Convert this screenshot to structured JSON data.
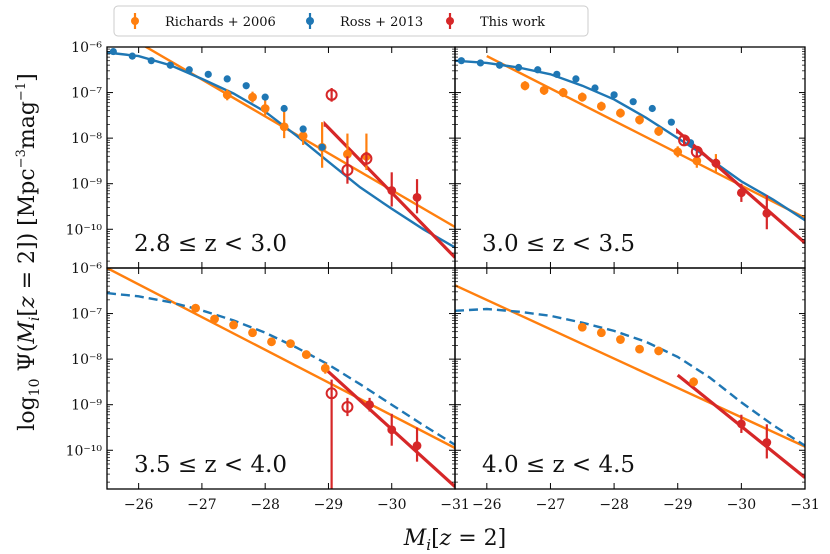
{
  "colors": {
    "orange": "#ff7f0e",
    "blue": "#1f77b4",
    "red": "#d62728"
  },
  "chart_data": {
    "type": "scatter",
    "xlabel": "M_i[z = 2]",
    "ylabel": "log10 Ψ(M_i[z = 2]) [Mpc^-3 mag^-1]",
    "xlim": [
      -25.5,
      -31.0
    ],
    "ylim_log10": [
      -10.85,
      -6.0
    ],
    "y_scale": "log",
    "x_ticks": [
      -26,
      -27,
      -28,
      -29,
      -30,
      -31
    ],
    "x_tick_labels": [
      "−26",
      "−27",
      "−28",
      "−29",
      "−30",
      "−31"
    ],
    "y_ticks": [
      -10,
      -9,
      -8,
      -7,
      -6
    ],
    "y_tick_labels": [
      "10⁻¹⁰",
      "10⁻⁹",
      "10⁻⁸",
      "10⁻⁷",
      "10⁻⁶"
    ],
    "legend": {
      "placement": "top",
      "entries": [
        {
          "label": "Richards + 2006",
          "color": "orange"
        },
        {
          "label": "Ross + 2013",
          "color": "blue"
        },
        {
          "label": "This work",
          "color": "red"
        }
      ]
    },
    "panels": [
      {
        "label": "2.8 ≤ z < 3.0",
        "series": [
          {
            "name": "Richards + 2006",
            "color": "orange",
            "points": [
              [
                -27.4,
                -7.05,
                0.12,
                0.12
              ],
              [
                -27.8,
                -7.1,
                0.12,
                0.12
              ],
              [
                -28.0,
                -7.35,
                0.15,
                0.2
              ],
              [
                -28.3,
                -7.75,
                0.25,
                0.35
              ],
              [
                -28.6,
                -7.95,
                0.2,
                0.2
              ],
              [
                -28.9,
                -8.2,
                0.45,
                0.55
              ],
              [
                -29.3,
                -8.35,
                0.3,
                0.45
              ],
              [
                -29.6,
                -8.4,
                0.3,
                0.5
              ]
            ]
          },
          {
            "name": "Ross + 2013",
            "color": "blue",
            "points": [
              [
                -25.6,
                -6.1
              ],
              [
                -25.9,
                -6.2
              ],
              [
                -26.2,
                -6.3
              ],
              [
                -26.5,
                -6.4
              ],
              [
                -26.8,
                -6.5
              ],
              [
                -27.1,
                -6.6
              ],
              [
                -27.4,
                -6.7
              ],
              [
                -27.7,
                -6.85
              ],
              [
                -28.0,
                -7.1
              ],
              [
                -28.3,
                -7.35
              ],
              [
                -28.6,
                -7.8
              ],
              [
                -28.9,
                -8.2
              ]
            ]
          },
          {
            "name": "This work",
            "color": "red",
            "points": [
              [
                -29.05,
                -7.05,
                0.15,
                0.15,
                true
              ],
              [
                -29.3,
                -8.7,
                0.3,
                0.3,
                true
              ],
              [
                -29.6,
                -8.45,
                0.15,
                0.15,
                true
              ],
              [
                -30.0,
                -9.15,
                0.35,
                0.4,
                false
              ],
              [
                -30.4,
                -9.3,
                0.35,
                0.4,
                false
              ]
            ]
          }
        ],
        "fits": [
          {
            "color": "orange",
            "dashed": false,
            "points": [
              [
                -25.5,
                -5.5
              ],
              [
                -31.0,
                -9.95
              ]
            ]
          },
          {
            "color": "blue",
            "dashed": false,
            "points": [
              [
                -25.5,
                -6.12
              ],
              [
                -26.0,
                -6.2
              ],
              [
                -26.5,
                -6.4
              ],
              [
                -27.0,
                -6.7
              ],
              [
                -27.5,
                -7.02
              ],
              [
                -28.0,
                -7.42
              ],
              [
                -28.5,
                -7.95
              ],
              [
                -29.0,
                -8.52
              ],
              [
                -29.5,
                -9.08
              ],
              [
                -30.0,
                -9.55
              ],
              [
                -30.5,
                -10.0
              ],
              [
                -31.0,
                -10.4
              ]
            ]
          },
          {
            "color": "red",
            "dashed": false,
            "points": [
              [
                -28.95,
                -7.75
              ],
              [
                -28.95,
                -7.7
              ],
              [
                -31.0,
                -10.62
              ]
            ]
          }
        ]
      },
      {
        "label": "3.0 ≤ z < 3.5",
        "series": [
          {
            "name": "Richards + 2006",
            "color": "orange",
            "points": [
              [
                -26.6,
                -6.85,
                0.1,
                0.1
              ],
              [
                -26.9,
                -6.95,
                0.1,
                0.1
              ],
              [
                -27.2,
                -7.0,
                0.1,
                0.1
              ],
              [
                -27.5,
                -7.1,
                0.1,
                0.1
              ],
              [
                -27.8,
                -7.3,
                0.1,
                0.1
              ],
              [
                -28.1,
                -7.45,
                0.1,
                0.1
              ],
              [
                -28.4,
                -7.6,
                0.1,
                0.1
              ],
              [
                -28.7,
                -7.85,
                0.1,
                0.1
              ],
              [
                -29.0,
                -8.3,
                0.12,
                0.12
              ],
              [
                -29.3,
                -8.5,
                0.15,
                0.15
              ],
              [
                -29.6,
                -8.55,
                0.2,
                0.2
              ]
            ]
          },
          {
            "name": "Ross + 2013",
            "color": "blue",
            "points": [
              [
                -25.6,
                -6.3
              ],
              [
                -25.9,
                -6.35
              ],
              [
                -26.2,
                -6.4
              ],
              [
                -26.5,
                -6.45
              ],
              [
                -26.8,
                -6.5
              ],
              [
                -27.1,
                -6.6
              ],
              [
                -27.4,
                -6.7
              ],
              [
                -27.7,
                -6.9
              ],
              [
                -28.0,
                -7.05
              ],
              [
                -28.3,
                -7.2
              ],
              [
                -28.6,
                -7.35
              ],
              [
                -28.9,
                -7.65
              ],
              [
                -29.2,
                -8.1
              ]
            ]
          },
          {
            "name": "This work",
            "color": "red",
            "points": [
              [
                -29.1,
                -8.05,
                0.1,
                0.1,
                true
              ],
              [
                -29.3,
                -8.3,
                0.1,
                0.1,
                true
              ],
              [
                -29.6,
                -8.55,
                0.1,
                0.1,
                false
              ],
              [
                -30.0,
                -9.2,
                0.2,
                0.2,
                false
              ],
              [
                -30.4,
                -9.65,
                0.35,
                0.4,
                false
              ]
            ]
          }
        ],
        "fits": [
          {
            "color": "orange",
            "dashed": false,
            "points": [
              [
                -26.0,
                -6.2
              ],
              [
                -31.0,
                -9.75
              ]
            ]
          },
          {
            "color": "blue",
            "dashed": false,
            "points": [
              [
                -25.5,
                -6.3
              ],
              [
                -26.0,
                -6.35
              ],
              [
                -26.5,
                -6.45
              ],
              [
                -27.0,
                -6.6
              ],
              [
                -27.5,
                -6.85
              ],
              [
                -28.0,
                -7.15
              ],
              [
                -28.5,
                -7.55
              ],
              [
                -29.0,
                -8.0
              ],
              [
                -29.5,
                -8.45
              ],
              [
                -30.0,
                -8.95
              ],
              [
                -30.5,
                -9.35
              ],
              [
                -31.0,
                -9.8
              ]
            ]
          },
          {
            "color": "red",
            "dashed": false,
            "points": [
              [
                -29.0,
                -7.9
              ],
              [
                -29.0,
                -7.85
              ],
              [
                -31.0,
                -10.3
              ]
            ]
          }
        ]
      },
      {
        "label": "3.5 ≤ z < 4.0",
        "series": [
          {
            "name": "Richards + 2006",
            "color": "orange",
            "points": [
              [
                -26.9,
                -6.88,
                0.08,
                0.08
              ],
              [
                -27.2,
                -7.12,
                0.08,
                0.08
              ],
              [
                -27.5,
                -7.25,
                0.08,
                0.08
              ],
              [
                -27.8,
                -7.42,
                0.08,
                0.08
              ],
              [
                -28.1,
                -7.62,
                0.08,
                0.08
              ],
              [
                -28.4,
                -7.66,
                0.08,
                0.08
              ],
              [
                -28.65,
                -7.9,
                0.08,
                0.08
              ],
              [
                -28.95,
                -8.2,
                0.12,
                0.12
              ]
            ]
          },
          {
            "name": "This work",
            "color": "red",
            "points": [
              [
                -29.05,
                -8.75,
                2.1,
                0.3,
                true
              ],
              [
                -29.3,
                -9.05,
                0.2,
                0.2,
                true
              ],
              [
                -29.65,
                -9.0,
                0.15,
                0.15,
                false
              ],
              [
                -30.0,
                -9.55,
                0.35,
                0.35,
                false
              ],
              [
                -30.4,
                -9.9,
                0.35,
                0.4,
                false
              ]
            ]
          }
        ],
        "fits": [
          {
            "color": "orange",
            "dashed": false,
            "points": [
              [
                -25.5,
                -6.0
              ],
              [
                -31.0,
                -9.95
              ]
            ]
          },
          {
            "color": "blue",
            "dashed": true,
            "points": [
              [
                -25.5,
                -6.55
              ],
              [
                -26.0,
                -6.62
              ],
              [
                -26.5,
                -6.75
              ],
              [
                -27.0,
                -6.93
              ],
              [
                -27.5,
                -7.15
              ],
              [
                -28.0,
                -7.42
              ],
              [
                -28.5,
                -7.75
              ],
              [
                -29.0,
                -8.12
              ],
              [
                -29.5,
                -8.55
              ],
              [
                -30.0,
                -9.0
              ],
              [
                -30.5,
                -9.45
              ],
              [
                -31.0,
                -9.88
              ]
            ]
          },
          {
            "color": "red",
            "dashed": false,
            "points": [
              [
                -28.9,
                -8.15
              ],
              [
                -31.0,
                -10.8
              ]
            ]
          }
        ]
      },
      {
        "label": "4.0 ≤ z < 4.5",
        "series": [
          {
            "name": "Richards + 2006",
            "color": "orange",
            "points": [
              [
                -27.5,
                -7.3,
                0.08,
                0.08
              ],
              [
                -27.8,
                -7.42,
                0.08,
                0.08
              ],
              [
                -28.1,
                -7.57,
                0.08,
                0.08
              ],
              [
                -28.4,
                -7.78,
                0.08,
                0.08
              ],
              [
                -28.7,
                -7.82,
                0.08,
                0.08
              ],
              [
                -29.25,
                -8.5,
                0.1,
                0.1
              ]
            ]
          },
          {
            "name": "This work",
            "color": "red",
            "points": [
              [
                -30.0,
                -9.42,
                0.2,
                0.2,
                false
              ],
              [
                -30.4,
                -9.83,
                0.35,
                0.4,
                false
              ]
            ]
          }
        ],
        "fits": [
          {
            "color": "orange",
            "dashed": false,
            "points": [
              [
                -25.5,
                -6.38
              ],
              [
                -31.0,
                -9.92
              ]
            ]
          },
          {
            "color": "blue",
            "dashed": true,
            "points": [
              [
                -25.5,
                -6.94
              ],
              [
                -26.0,
                -6.9
              ],
              [
                -26.5,
                -6.96
              ],
              [
                -27.0,
                -7.05
              ],
              [
                -27.5,
                -7.2
              ],
              [
                -28.0,
                -7.38
              ],
              [
                -28.5,
                -7.62
              ],
              [
                -29.0,
                -7.95
              ],
              [
                -29.5,
                -8.4
              ],
              [
                -30.0,
                -8.95
              ],
              [
                -30.5,
                -9.45
              ],
              [
                -31.0,
                -9.9
              ]
            ]
          },
          {
            "color": "red",
            "dashed": false,
            "points": [
              [
                -29.0,
                -8.35
              ],
              [
                -31.0,
                -10.6
              ]
            ]
          }
        ]
      }
    ]
  }
}
